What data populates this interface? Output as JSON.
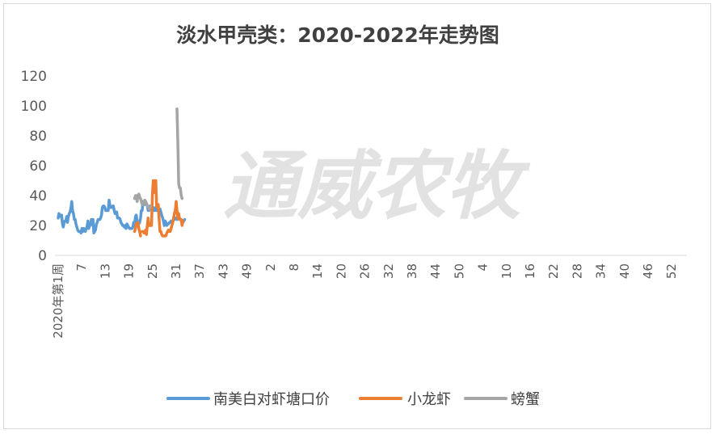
{
  "chart_data": {
    "type": "line",
    "title": "淡水甲壳类：2020-2022年走势图",
    "watermark": "通威农牧",
    "xlabel": "",
    "ylabel": "",
    "ylim": [
      0,
      120
    ],
    "y_ticks": [
      0,
      20,
      40,
      60,
      80,
      100,
      120
    ],
    "x_tick_labels": [
      "2020年第1周",
      "7",
      "13",
      "19",
      "25",
      "31",
      "37",
      "43",
      "49",
      "2",
      "8",
      "14",
      "20",
      "26",
      "32",
      "38",
      "44",
      "50",
      "4",
      "10",
      "16",
      "22",
      "28",
      "34",
      "40",
      "46",
      "52"
    ],
    "grid": false,
    "legend": "bottom",
    "series": [
      {
        "name": "南美白对虾塘口价",
        "color": "#5b9bd5",
        "start_index": 0,
        "values": [
          25,
          28,
          26,
          26,
          27,
          21,
          19,
          22,
          23,
          23,
          26,
          22,
          26,
          28,
          29,
          32,
          36,
          30,
          28,
          24,
          24,
          21,
          19,
          17,
          16,
          16,
          16,
          15,
          18,
          16,
          18,
          17,
          16,
          18,
          19,
          23,
          18,
          20,
          20,
          24,
          24,
          24,
          15,
          16,
          17,
          21,
          22,
          24,
          24,
          24,
          25,
          27,
          32,
          33,
          33,
          32,
          30,
          30,
          30,
          30,
          37,
          33,
          32,
          32,
          33,
          33,
          30,
          28,
          29,
          29,
          25,
          25,
          25,
          24,
          22,
          21,
          20,
          20,
          19,
          20,
          18,
          21,
          20,
          19,
          18,
          18,
          18,
          18,
          19,
          22,
          20,
          26,
          27,
          23,
          21,
          21,
          22,
          25,
          30,
          30,
          36,
          36,
          34,
          35,
          35,
          33,
          30,
          30,
          33,
          32,
          31,
          30,
          32,
          30,
          30,
          32,
          30,
          30,
          32,
          30,
          31,
          29,
          27,
          25,
          23,
          20,
          23,
          22,
          20,
          21,
          21,
          22,
          22,
          23,
          22,
          23,
          24,
          24,
          25,
          25,
          24,
          25,
          25,
          25,
          24,
          24,
          23,
          22,
          23,
          24
        ]
      },
      {
        "name": "小龙虾",
        "color": "#ed7d31",
        "start_index": 90,
        "values": [
          16,
          18,
          21,
          21,
          22,
          18,
          16,
          13,
          null,
          16,
          16,
          15,
          15,
          17,
          14,
          20,
          25,
          20,
          20,
          20,
          20,
          40,
          50,
          42,
          50,
          50,
          33,
          32,
          34,
          24,
          16,
          16,
          14,
          13,
          13,
          13,
          13,
          13,
          15,
          16,
          17,
          16,
          16,
          18,
          20,
          22,
          25,
          28,
          30,
          36,
          30,
          25,
          28,
          24,
          24,
          24,
          20,
          23
        ]
      },
      {
        "name": "螃蟹",
        "color": "#a5a5a5",
        "start_index": 90,
        "values": [
          38,
          40,
          40,
          36,
          40,
          41,
          39,
          38,
          36,
          34,
          34,
          35,
          37,
          36,
          35,
          33,
          32,
          31,
          32,
          33,
          null,
          null,
          null,
          null,
          null,
          null,
          null,
          null,
          null,
          null,
          null,
          null,
          null,
          null,
          null,
          null,
          null,
          null,
          null,
          null,
          null,
          null,
          null,
          null,
          null,
          null,
          null,
          null,
          null,
          null,
          98,
          75,
          48,
          45,
          45,
          40,
          38
        ]
      }
    ]
  }
}
